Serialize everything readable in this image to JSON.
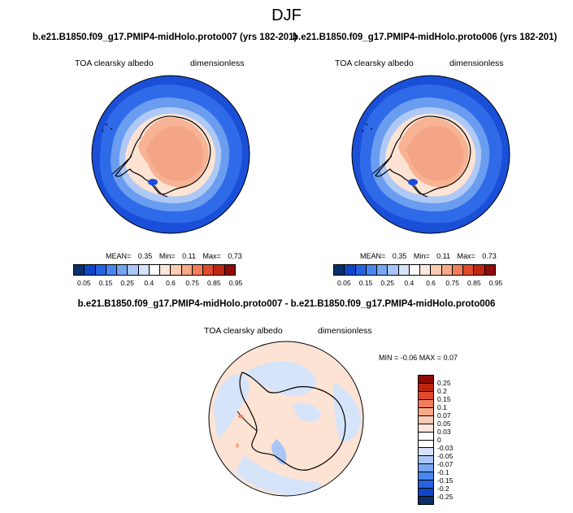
{
  "figure": {
    "season": "DJF",
    "variable": "TOA clearsky albedo",
    "units": "dimensionless"
  },
  "panels": [
    {
      "case": "b.e21.B1850.f09_g17.PMIP4-midHolo.proto007 (yrs 182-201)",
      "stats": {
        "mean_label": "MEAN=",
        "mean": "0.35",
        "min_label": "Min=",
        "min": "0.11",
        "max_label": "Max=",
        "max": "0.73"
      }
    },
    {
      "case": "b.e21.B1850.f09_g17.PMIP4-midHolo.proto006 (yrs 182-201)",
      "stats": {
        "mean_label": "MEAN=",
        "mean": "0.35",
        "min_label": "Min=",
        "min": "0.11",
        "max_label": "Max=",
        "max": "0.73"
      }
    }
  ],
  "difference": {
    "title": "b.e21.B1850.f09_g17.PMIP4-midHolo.proto007 - b.e21.B1850.f09_g17.PMIP4-midHolo.proto006",
    "stats": "MIN =  -0.06 MAX =   0.07"
  },
  "colorbar_abs": {
    "labels": [
      "0.05",
      "0.15",
      "0.25",
      "0.4",
      "0.6",
      "0.75",
      "0.85",
      "0.95"
    ],
    "colors": [
      "#08306b",
      "#0d47c8",
      "#2563e0",
      "#4a86ef",
      "#78a5f2",
      "#a9c6f6",
      "#d6e4fa",
      "#ffffff",
      "#fde7dc",
      "#fccbb3",
      "#f8a988",
      "#f27d5a",
      "#e04a2b",
      "#c0260f",
      "#8f0a08"
    ]
  },
  "colorbar_diff": {
    "labels": [
      "0.25",
      "0.2",
      "0.15",
      "0.1",
      "0.07",
      "0.05",
      "0.03",
      "0",
      "-0.03",
      "-0.05",
      "-0.07",
      "-0.1",
      "-0.15",
      "-0.2",
      "-0.25"
    ],
    "colors": [
      "#8f0a08",
      "#c0260f",
      "#e04a2b",
      "#f27d5a",
      "#f8a988",
      "#fccbb3",
      "#fde7dc",
      "#ffffff",
      "#ffffff",
      "#d6e4fa",
      "#a9c6f6",
      "#78a5f2",
      "#4a86ef",
      "#2563e0",
      "#0d47c8",
      "#08306b"
    ]
  }
}
